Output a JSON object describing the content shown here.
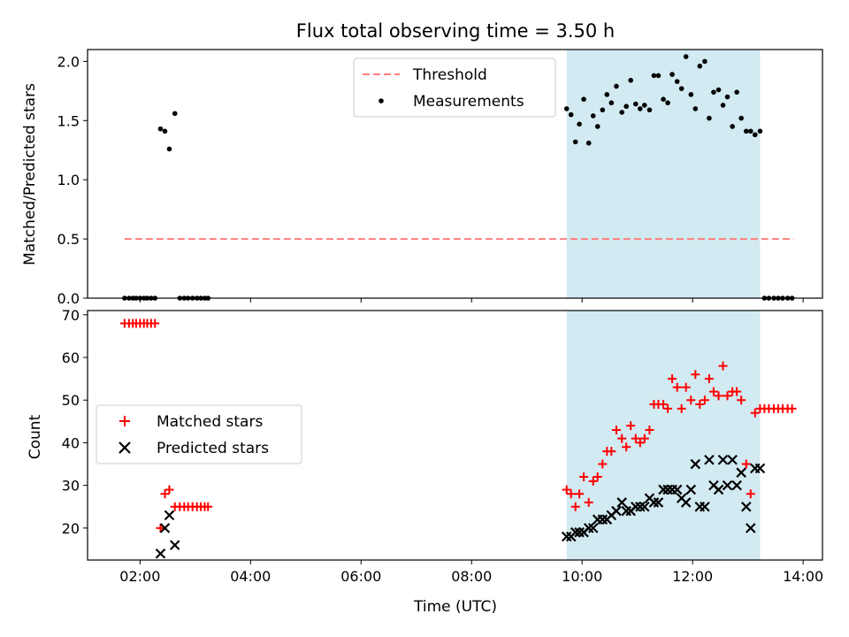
{
  "chart_data": [
    {
      "type": "scatter",
      "title": "Flux total observing time = 3.50 h",
      "ylabel": "Matched/Predicted stars",
      "xlim_hours": [
        1.05,
        14.35
      ],
      "ylim": [
        0,
        2.1
      ],
      "yticks": [
        0.0,
        0.5,
        1.0,
        1.5,
        2.0
      ],
      "ytick_labels": [
        "0.0",
        "0.5",
        "1.0",
        "1.5",
        "2.0"
      ],
      "xticks_hours": [
        2,
        4,
        6,
        8,
        10,
        12,
        14
      ],
      "shaded_span_hours": [
        9.72,
        13.22
      ],
      "shade_color": "#add8e6",
      "legend_position": "upper center",
      "series": [
        {
          "name": "Threshold",
          "style": "dashed-line",
          "color": "#ff7f7f",
          "x": [
            1.72,
            13.83
          ],
          "y": [
            0.5,
            0.5
          ]
        },
        {
          "name": "Measurements",
          "style": "dot",
          "color": "#000000",
          "x": [
            1.72,
            1.8,
            1.87,
            1.93,
            2.0,
            2.07,
            2.13,
            2.2,
            2.27,
            2.37,
            2.45,
            2.53,
            2.63,
            2.72,
            2.8,
            2.87,
            2.95,
            3.03,
            3.1,
            3.17,
            3.23,
            9.72,
            9.8,
            9.88,
            9.95,
            10.03,
            10.12,
            10.2,
            10.28,
            10.37,
            10.45,
            10.53,
            10.62,
            10.72,
            10.8,
            10.88,
            10.97,
            11.05,
            11.13,
            11.22,
            11.3,
            11.38,
            11.47,
            11.55,
            11.63,
            11.72,
            11.8,
            11.88,
            11.97,
            12.05,
            12.13,
            12.22,
            12.3,
            12.38,
            12.47,
            12.55,
            12.63,
            12.72,
            12.8,
            12.88,
            12.97,
            13.05,
            13.13,
            13.22,
            13.3,
            13.38,
            13.47,
            13.55,
            13.63,
            13.72,
            13.8
          ],
          "y": [
            0,
            0,
            0,
            0,
            0,
            0,
            0,
            0,
            0,
            1.43,
            1.41,
            1.26,
            1.56,
            0,
            0,
            0,
            0,
            0,
            0,
            0,
            0,
            1.6,
            1.55,
            1.32,
            1.47,
            1.68,
            1.31,
            1.54,
            1.45,
            1.59,
            1.72,
            1.65,
            1.79,
            1.57,
            1.62,
            1.84,
            1.64,
            1.6,
            1.63,
            1.59,
            1.88,
            1.88,
            1.68,
            1.65,
            1.89,
            1.83,
            1.77,
            2.04,
            1.72,
            1.6,
            1.96,
            2.0,
            1.52,
            1.74,
            1.76,
            1.63,
            1.7,
            1.45,
            1.74,
            1.52,
            1.41,
            1.41,
            1.38,
            1.41,
            0,
            0,
            0,
            0,
            0,
            0,
            0
          ]
        }
      ]
    },
    {
      "type": "scatter",
      "xlabel": "Time (UTC)",
      "ylabel": "Count",
      "xlim_hours": [
        1.05,
        14.35
      ],
      "ylim": [
        12.5,
        71
      ],
      "yticks": [
        20,
        30,
        40,
        50,
        60,
        70
      ],
      "ytick_labels": [
        "20",
        "30",
        "40",
        "50",
        "60",
        "70"
      ],
      "xticks_hours": [
        2,
        4,
        6,
        8,
        10,
        12,
        14
      ],
      "xtick_labels": [
        "02:00",
        "04:00",
        "06:00",
        "08:00",
        "10:00",
        "12:00",
        "14:00"
      ],
      "shaded_span_hours": [
        9.72,
        13.22
      ],
      "shade_color": "#add8e6",
      "legend_position": "center left",
      "series": [
        {
          "name": "Matched stars",
          "marker": "+",
          "color": "#ff0000",
          "x": [
            1.72,
            1.8,
            1.87,
            1.93,
            2.0,
            2.07,
            2.13,
            2.2,
            2.27,
            2.37,
            2.45,
            2.53,
            2.63,
            2.72,
            2.8,
            2.87,
            2.95,
            3.03,
            3.1,
            3.17,
            3.23,
            9.72,
            9.8,
            9.88,
            9.95,
            10.03,
            10.12,
            10.2,
            10.28,
            10.37,
            10.45,
            10.53,
            10.62,
            10.72,
            10.8,
            10.88,
            10.97,
            11.05,
            11.13,
            11.22,
            11.3,
            11.38,
            11.47,
            11.55,
            11.63,
            11.72,
            11.8,
            11.88,
            11.97,
            12.05,
            12.13,
            12.22,
            12.3,
            12.38,
            12.47,
            12.55,
            12.63,
            12.72,
            12.8,
            12.88,
            12.97,
            13.05,
            13.13,
            13.22,
            13.3,
            13.38,
            13.47,
            13.55,
            13.63,
            13.72,
            13.8
          ],
          "y": [
            68,
            68,
            68,
            68,
            68,
            68,
            68,
            68,
            68,
            20,
            28,
            29,
            25,
            25,
            25,
            25,
            25,
            25,
            25,
            25,
            25,
            29,
            28,
            25,
            28,
            32,
            26,
            31,
            32,
            35,
            38,
            38,
            43,
            41,
            39,
            44,
            41,
            40,
            41,
            43,
            49,
            49,
            49,
            48,
            55,
            53,
            48,
            53,
            50,
            56,
            49,
            50,
            55,
            52,
            51,
            58,
            51,
            52,
            52,
            50,
            35,
            28,
            47,
            48,
            48,
            48,
            48,
            48,
            48,
            48,
            48
          ]
        },
        {
          "name": "Predicted stars",
          "marker": "x",
          "color": "#000000",
          "x": [
            2.37,
            2.45,
            2.53,
            2.63,
            9.72,
            9.8,
            9.88,
            9.95,
            10.03,
            10.12,
            10.2,
            10.28,
            10.37,
            10.45,
            10.53,
            10.62,
            10.72,
            10.8,
            10.88,
            10.97,
            11.05,
            11.13,
            11.22,
            11.3,
            11.38,
            11.47,
            11.55,
            11.63,
            11.72,
            11.8,
            11.88,
            11.97,
            12.05,
            12.13,
            12.22,
            12.3,
            12.38,
            12.47,
            12.55,
            12.63,
            12.72,
            12.8,
            12.88,
            12.97,
            13.05,
            13.13,
            13.22
          ],
          "y": [
            14,
            20,
            23,
            16,
            18,
            18,
            19,
            19,
            19,
            20,
            20,
            22,
            22,
            22,
            23,
            24,
            26,
            24,
            24,
            25,
            25,
            25,
            27,
            26,
            26,
            29,
            29,
            29,
            29,
            27,
            26,
            29,
            35,
            25,
            25,
            36,
            30,
            29,
            36,
            30,
            36,
            30,
            33,
            25,
            20,
            34,
            34
          ]
        }
      ]
    }
  ]
}
